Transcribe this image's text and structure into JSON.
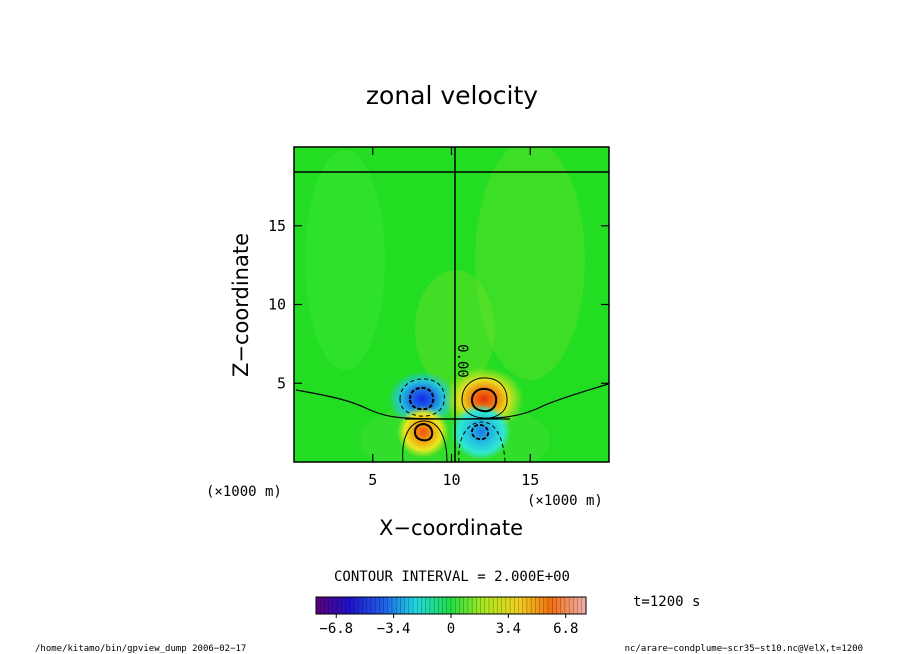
{
  "chart_data": {
    "type": "heatmap",
    "title": "zonal velocity",
    "xlabel": "X−coordinate",
    "ylabel": "Z−coordinate",
    "x_unit_label": "(×1000 m)",
    "y_unit_label": "(×1000 m)",
    "xlim": [
      0,
      20
    ],
    "ylim": [
      0,
      20
    ],
    "x_ticks": [
      5,
      10,
      15
    ],
    "y_ticks": [
      5,
      10,
      15
    ],
    "x_tick_labels": [
      "5",
      "10",
      "15"
    ],
    "y_tick_labels": [
      "5",
      "10",
      "15"
    ],
    "contour_interval_text": "CONTOUR INTERVAL = 2.000E+00",
    "zero_contour_label": "0.00",
    "time_label": "t=1200 s",
    "colorbar": {
      "range": [
        -8,
        8
      ],
      "ticks": [
        -6.8,
        -3.4,
        0,
        3.4,
        6.8
      ],
      "tick_labels": [
        "−6.8",
        "−3.4",
        "0",
        "3.4",
        "6.8"
      ]
    },
    "features": [
      {
        "name": "negative core upper-left",
        "x": 8.2,
        "z": 3.9,
        "value": -6.0
      },
      {
        "name": "positive core upper-right",
        "x": 12.0,
        "z": 3.9,
        "value": 7.0
      },
      {
        "name": "positive core lower-left",
        "x": 8.2,
        "z": 1.9,
        "value": 4.8
      },
      {
        "name": "negative core lower-right",
        "x": 11.8,
        "z": 1.9,
        "value": -4.0
      }
    ],
    "footer_left": "/home/kitamo/bin/gpview_dump  2006−02−17",
    "footer_right": "nc/arare−condplume−scr35−st10.nc@VelX,t=1200"
  },
  "colors": {
    "background_field": "#22dd22",
    "negative_peak": "#1a30e0",
    "positive_peak": "#e03a10"
  }
}
